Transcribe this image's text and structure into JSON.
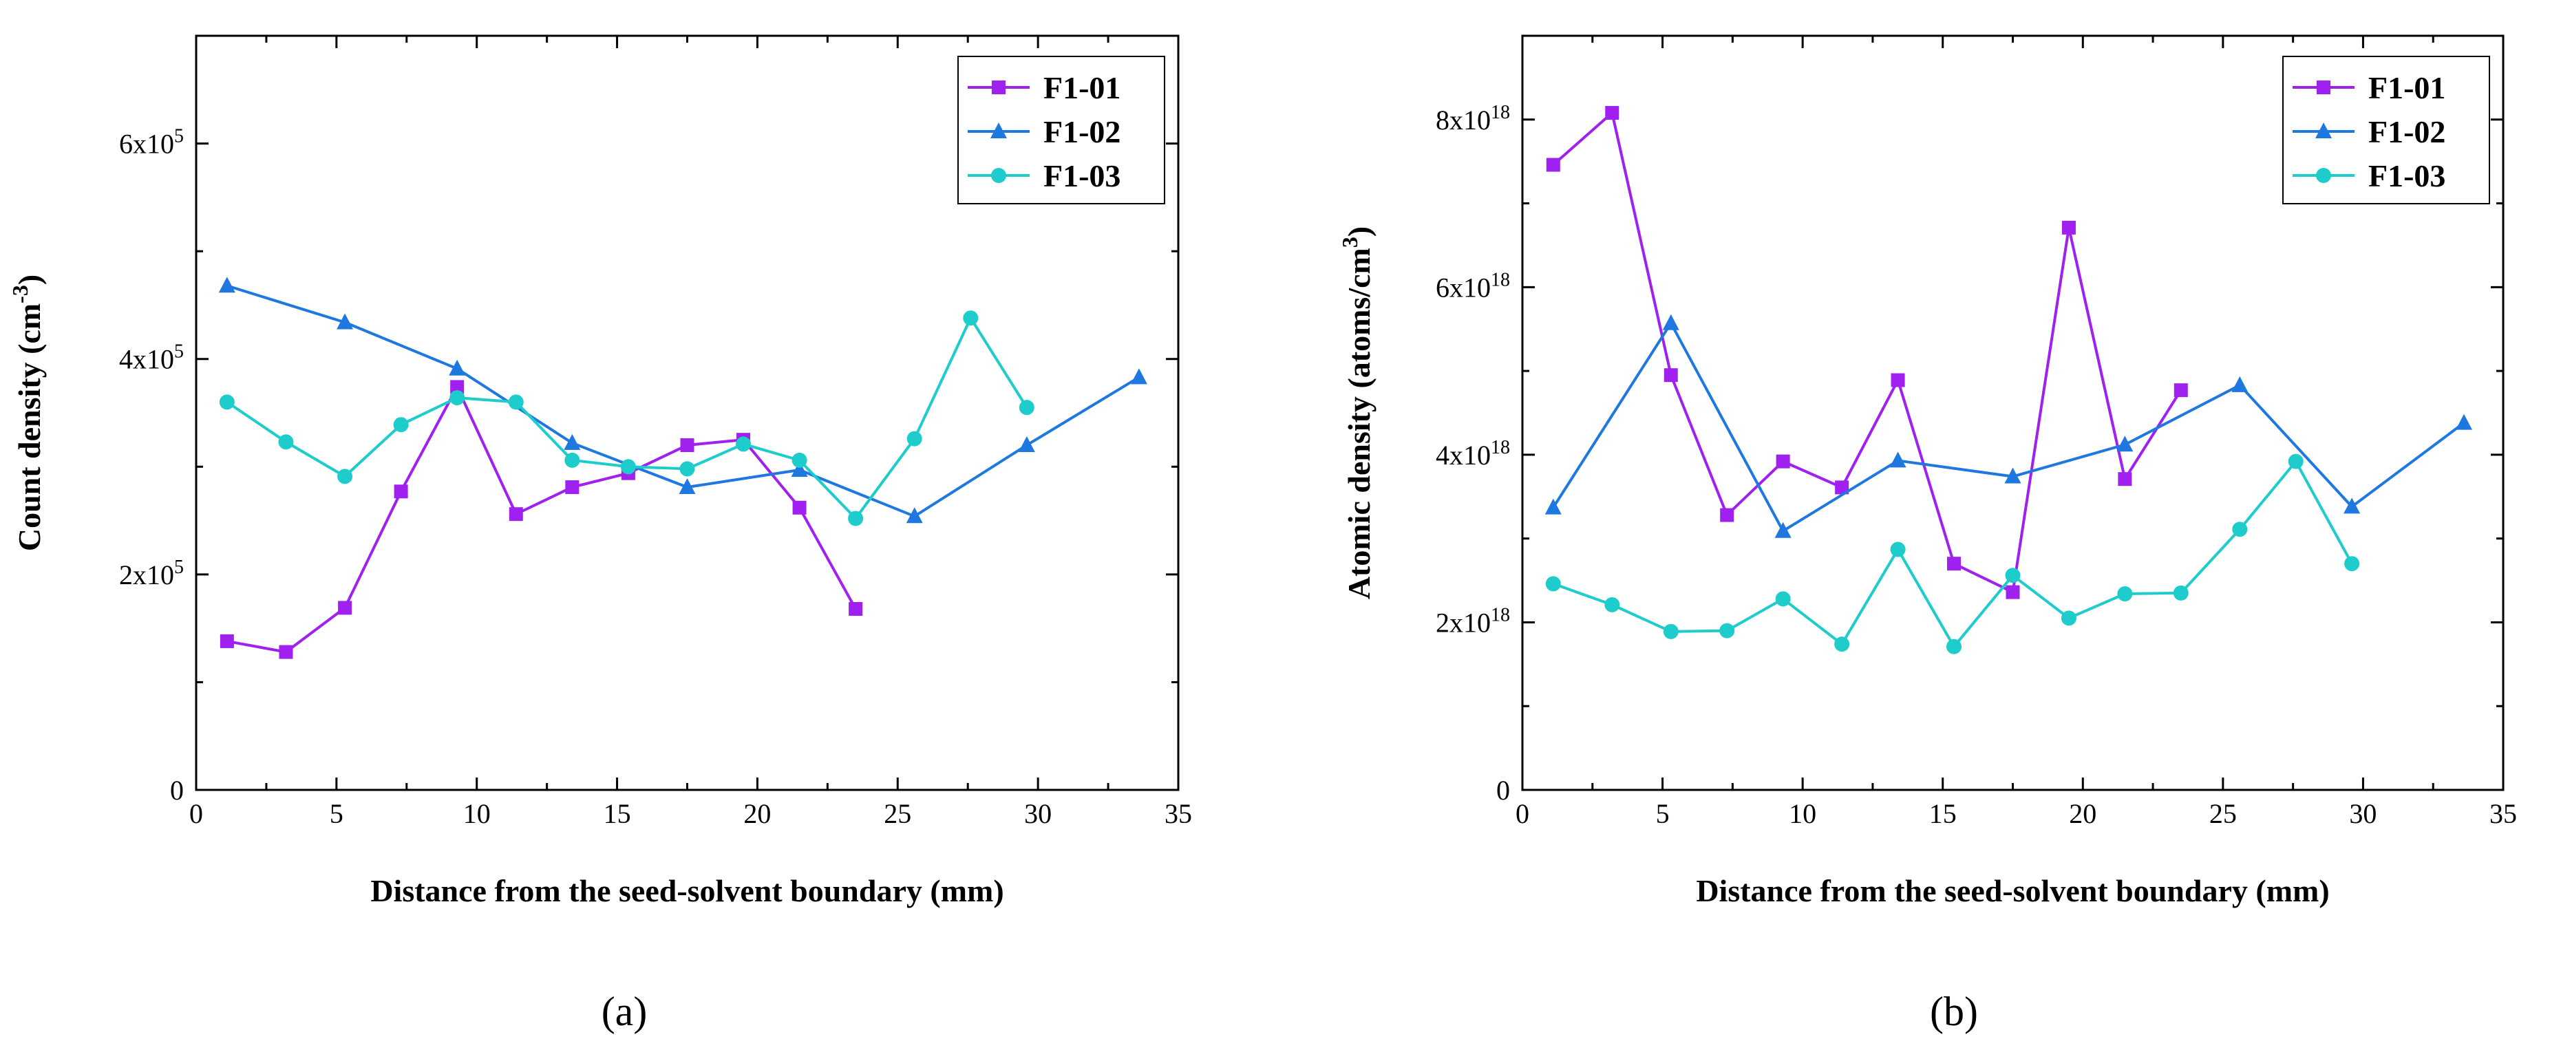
{
  "chart_data": [
    {
      "type": "line",
      "panel_label": "(a)",
      "xlabel": "Distance from the seed-solvent boundary (mm)",
      "ylabel": {
        "base": "Count density (cm",
        "sup": "-3",
        "tail": ")"
      },
      "xlim": [
        0,
        35
      ],
      "ylim": [
        0,
        700000
      ],
      "x_ticks": [
        "0",
        "5",
        "10",
        "15",
        "20",
        "25",
        "30",
        "35"
      ],
      "y_ticks": [
        {
          "value": 0,
          "label": "0",
          "sup": ""
        },
        {
          "value": 200000,
          "label": "2x10",
          "sup": "5"
        },
        {
          "value": 400000,
          "label": "4x10",
          "sup": "5"
        },
        {
          "value": 600000,
          "label": "6x10",
          "sup": "5"
        }
      ],
      "legend_position": "top-right",
      "grid": false,
      "series": [
        {
          "name": "F1-01",
          "color": "#a020f0",
          "marker": "square",
          "x": [
            1.1,
            3.2,
            5.3,
            7.3,
            9.3,
            11.4,
            13.4,
            15.4,
            17.5,
            19.5,
            21.5,
            23.5
          ],
          "y": [
            138000,
            128000,
            169000,
            277000,
            374000,
            256000,
            281000,
            294000,
            320000,
            325000,
            262000,
            168000
          ]
        },
        {
          "name": "F1-02",
          "color": "#1e78e0",
          "marker": "triangle",
          "x": [
            1.1,
            5.3,
            9.3,
            13.4,
            17.5,
            21.5,
            25.6,
            29.6,
            33.6
          ],
          "y": [
            468000,
            434000,
            391000,
            322000,
            281000,
            297000,
            254000,
            320000,
            383000
          ]
        },
        {
          "name": "F1-03",
          "color": "#1ecccc",
          "marker": "circle",
          "x": [
            1.1,
            3.2,
            5.3,
            7.3,
            9.3,
            11.4,
            13.4,
            15.4,
            17.5,
            19.5,
            21.5,
            23.5,
            25.6,
            27.6,
            29.6
          ],
          "y": [
            360000,
            323000,
            291000,
            339000,
            364000,
            360000,
            306000,
            300000,
            298000,
            321000,
            306000,
            252000,
            326000,
            438000,
            355000
          ]
        }
      ]
    },
    {
      "type": "line",
      "panel_label": "(b)",
      "xlabel": "Distance from the seed-solvent boundary (mm)",
      "ylabel": {
        "base": "Atomic density (atoms/cm",
        "sup": "3",
        "tail": ")"
      },
      "xlim": [
        0,
        35
      ],
      "ylim": [
        0,
        9e+18
      ],
      "x_ticks": [
        "0",
        "5",
        "10",
        "15",
        "20",
        "25",
        "30",
        "35"
      ],
      "y_ticks": [
        {
          "value": 0,
          "label": "0",
          "sup": ""
        },
        {
          "value": 2e+18,
          "label": "2x10",
          "sup": "18"
        },
        {
          "value": 4e+18,
          "label": "4x10",
          "sup": "18"
        },
        {
          "value": 6e+18,
          "label": "6x10",
          "sup": "18"
        },
        {
          "value": 8e+18,
          "label": "8x10",
          "sup": "18"
        }
      ],
      "legend_position": "top-right",
      "grid": false,
      "series": [
        {
          "name": "F1-01",
          "color": "#a020f0",
          "marker": "square",
          "x": [
            1.1,
            3.2,
            5.3,
            7.3,
            9.3,
            11.4,
            13.4,
            15.4,
            17.5,
            19.5,
            21.5,
            23.5
          ],
          "y": [
            7.46e+18,
            8.08e+18,
            4.95e+18,
            3.28e+18,
            3.92e+18,
            3.61e+18,
            4.89e+18,
            2.7e+18,
            2.36e+18,
            6.71e+18,
            3.71e+18,
            4.77e+18
          ]
        },
        {
          "name": "F1-02",
          "color": "#1e78e0",
          "marker": "triangle",
          "x": [
            1.1,
            5.3,
            9.3,
            13.4,
            17.5,
            21.5,
            25.6,
            29.6,
            33.6
          ],
          "y": [
            3.37e+18,
            5.57e+18,
            3.09e+18,
            3.93e+18,
            3.74e+18,
            4.12e+18,
            4.83e+18,
            3.38e+18,
            4.38e+18
          ]
        },
        {
          "name": "F1-03",
          "color": "#1ecccc",
          "marker": "circle",
          "x": [
            1.1,
            3.2,
            5.3,
            7.3,
            9.3,
            11.4,
            13.4,
            15.4,
            17.5,
            19.5,
            21.5,
            23.5,
            25.6,
            27.6,
            29.6
          ],
          "y": [
            2.46e+18,
            2.21e+18,
            1.89e+18,
            1.9e+18,
            2.28e+18,
            1.74e+18,
            2.87e+18,
            1.71e+18,
            2.56e+18,
            2.05e+18,
            2.34e+18,
            2.35e+18,
            3.11e+18,
            3.92e+18,
            2.7e+18
          ]
        }
      ]
    }
  ]
}
